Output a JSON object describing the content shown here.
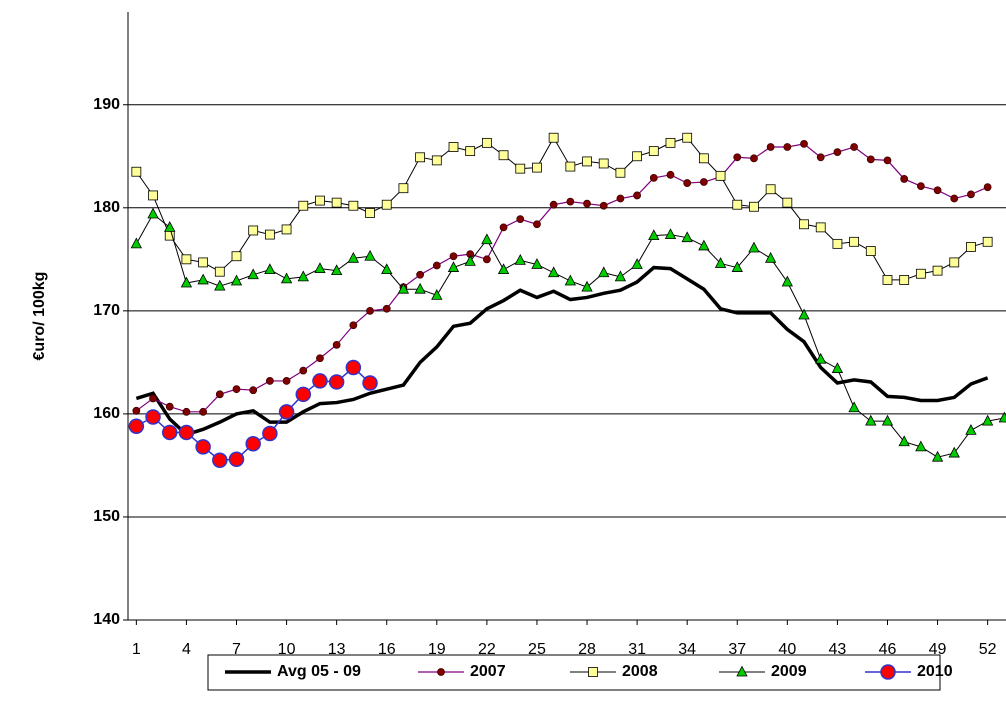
{
  "chart_data": {
    "type": "line",
    "y_label": "€uro/ 100kg",
    "x": [
      1,
      2,
      3,
      4,
      5,
      6,
      7,
      8,
      9,
      10,
      11,
      12,
      13,
      14,
      15,
      16,
      17,
      18,
      19,
      20,
      21,
      22,
      23,
      24,
      25,
      26,
      27,
      28,
      29,
      30,
      31,
      32,
      33,
      34,
      35,
      36,
      37,
      38,
      39,
      40,
      41,
      42,
      43,
      44,
      45,
      46,
      47,
      48,
      49,
      50,
      51,
      52,
      53
    ],
    "xlim": [
      0.5,
      53.1
    ],
    "xticks": [
      1,
      4,
      7,
      10,
      13,
      16,
      19,
      22,
      25,
      28,
      31,
      34,
      37,
      40,
      43,
      46,
      49,
      52
    ],
    "ylim": [
      140,
      199
    ],
    "yticks": [
      140,
      150,
      160,
      170,
      180,
      190
    ],
    "grid": true,
    "legend": "bottom",
    "series": [
      {
        "name": "Avg 05 - 09",
        "color": "#000000",
        "line_width": 3.5,
        "marker": "none",
        "marker_color": "#000000",
        "values": [
          161.5,
          162,
          159.5,
          158,
          158.5,
          159.2,
          160,
          160.3,
          159.2,
          159.2,
          160.2,
          161,
          161.1,
          161.4,
          162,
          162.4,
          162.8,
          165,
          166.5,
          168.5,
          168.8,
          170.2,
          171,
          172,
          171.3,
          171.9,
          171.1,
          171.3,
          171.7,
          172,
          172.8,
          174.2,
          174.1,
          173.1,
          172.1,
          170.2,
          169.8,
          169.8,
          169.8,
          168.2,
          167,
          164.5,
          163,
          163.3,
          163.1,
          161.7,
          161.6,
          161.3,
          161.3,
          161.6,
          162.9,
          163.5,
          null
        ]
      },
      {
        "name": "2007",
        "color": "#800080",
        "line_width": 1.2,
        "marker": "circle",
        "marker_color": "#800000",
        "values": [
          160.3,
          161.5,
          160.7,
          160.2,
          160.2,
          161.9,
          162.4,
          162.3,
          163.2,
          163.2,
          164.2,
          165.4,
          166.7,
          168.6,
          170,
          170.2,
          172.3,
          173.5,
          174.4,
          175.3,
          175.5,
          175,
          178.1,
          178.9,
          178.4,
          180.3,
          180.6,
          180.4,
          180.2,
          180.9,
          181.2,
          182.9,
          183.2,
          182.4,
          182.5,
          183,
          184.9,
          184.8,
          185.9,
          185.9,
          186.2,
          184.9,
          185.4,
          185.9,
          184.7,
          184.6,
          182.8,
          182.1,
          181.7,
          180.9,
          181.3,
          182,
          null
        ]
      },
      {
        "name": "2008",
        "color": "#000000",
        "line_width": 1,
        "marker": "square",
        "marker_color": "#ffff99",
        "values": [
          183.5,
          181.2,
          177.3,
          175,
          174.7,
          173.8,
          175.3,
          177.8,
          177.4,
          177.9,
          180.2,
          180.7,
          180.5,
          180.2,
          179.5,
          180.3,
          181.9,
          184.9,
          184.6,
          185.9,
          185.5,
          186.3,
          185.1,
          183.8,
          183.9,
          186.8,
          184,
          184.5,
          184.3,
          183.4,
          185,
          185.5,
          186.3,
          186.8,
          184.8,
          183.1,
          180.3,
          180.1,
          181.8,
          180.5,
          178.4,
          178.1,
          176.5,
          176.7,
          175.8,
          173,
          173,
          173.6,
          173.9,
          174.7,
          176.2,
          176.7,
          null
        ]
      },
      {
        "name": "2009",
        "color": "#000000",
        "line_width": 1,
        "marker": "triangle",
        "marker_color": "#00cc00",
        "values": [
          176.5,
          179.4,
          178.1,
          172.7,
          173,
          172.4,
          172.9,
          173.5,
          174,
          173.1,
          173.3,
          174.1,
          173.9,
          175.1,
          175.3,
          174,
          172.1,
          172.1,
          171.5,
          174.2,
          174.8,
          176.9,
          174,
          174.9,
          174.5,
          173.7,
          172.9,
          172.3,
          173.7,
          173.3,
          174.5,
          177.3,
          177.4,
          177.1,
          176.3,
          174.6,
          174.2,
          176.1,
          175.1,
          172.8,
          169.6,
          165.3,
          164.4,
          160.6,
          159.3,
          159.3,
          157.3,
          156.8,
          155.8,
          156.2,
          158.4,
          159.3,
          159.6
        ]
      },
      {
        "name": "2010",
        "color": "#3333cc",
        "line_width": 1.5,
        "marker": "big-circle",
        "marker_color": "#ff0000",
        "values": [
          158.8,
          159.7,
          158.2,
          158.2,
          156.8,
          155.5,
          155.6,
          157.1,
          158.1,
          160.2,
          161.9,
          163.2,
          163.1,
          164.5,
          163,
          null,
          null,
          null,
          null,
          null,
          null,
          null,
          null,
          null,
          null,
          null,
          null,
          null,
          null,
          null,
          null,
          null,
          null,
          null,
          null,
          null,
          null,
          null,
          null,
          null,
          null,
          null,
          null,
          null,
          null,
          null,
          null,
          null,
          null,
          null,
          null,
          null,
          null
        ]
      }
    ]
  }
}
